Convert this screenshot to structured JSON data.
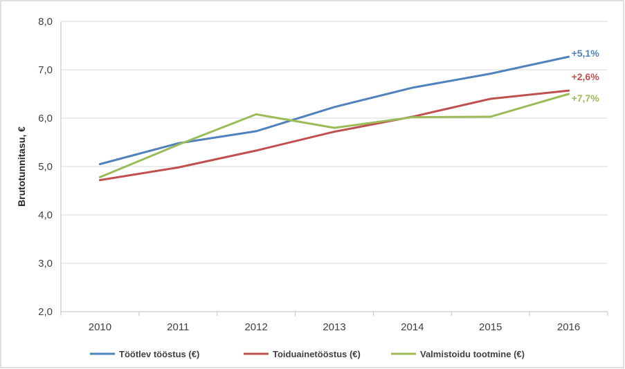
{
  "chart_data": {
    "type": "line",
    "x": [
      "2010",
      "2011",
      "2012",
      "2013",
      "2014",
      "2015",
      "2016"
    ],
    "ylabel": "Brutotunnitasu, €",
    "ylim": [
      2.0,
      8.0
    ],
    "yticks": [
      "2,0",
      "3,0",
      "4,0",
      "5,0",
      "6,0",
      "7,0",
      "8,0"
    ],
    "grid": true,
    "legend_position": "bottom",
    "series": [
      {
        "name": "Töötlev tööstus (€)",
        "color": "#4f81bd",
        "values": [
          5.05,
          5.48,
          5.73,
          6.23,
          6.63,
          6.92,
          7.27
        ],
        "end_label": "+5,1%"
      },
      {
        "name": "Toiduainetööstus (€)",
        "color": "#c0504d",
        "values": [
          4.72,
          4.98,
          5.33,
          5.72,
          6.03,
          6.4,
          6.57
        ],
        "end_label": "+2,6%"
      },
      {
        "name": "Valmistoidu tootmine (€)",
        "color": "#9bbb59",
        "values": [
          4.78,
          5.45,
          6.08,
          5.8,
          6.02,
          6.03,
          6.5
        ],
        "end_label": "+7,7%"
      }
    ]
  }
}
